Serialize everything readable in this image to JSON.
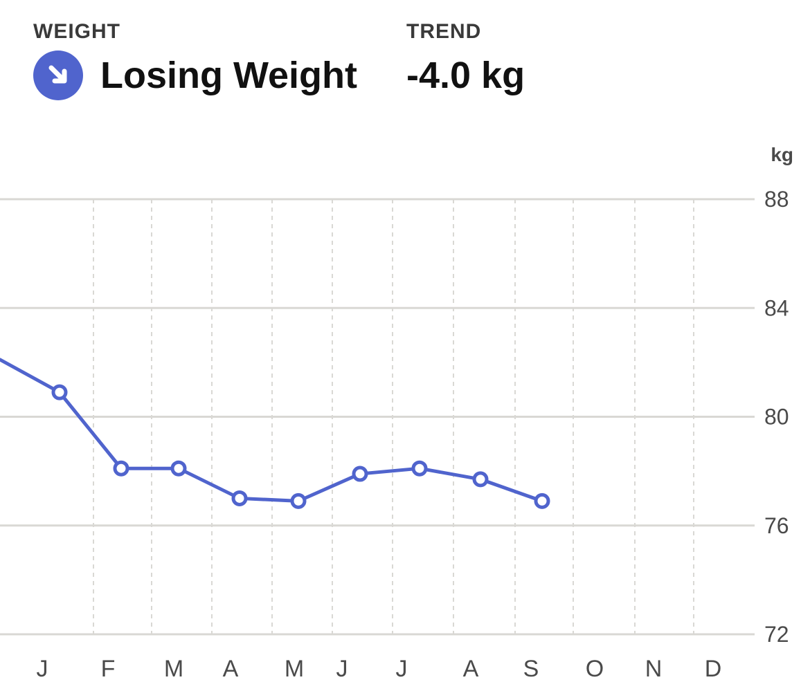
{
  "header": {
    "weight_label": "WEIGHT",
    "status_text": "Losing Weight",
    "status_icon": "arrow-down-right-icon",
    "trend_label": "TREND",
    "trend_value": "-4.0 kg"
  },
  "colors": {
    "accent": "#5064CD",
    "gridline": "#D9D8D4",
    "label": "#4A4A4A"
  },
  "chart_data": {
    "type": "line",
    "unit_label": "kg",
    "categories": [
      "J",
      "F",
      "M",
      "A",
      "M",
      "J",
      "J",
      "A",
      "S",
      "O",
      "N",
      "D"
    ],
    "y_ticks": [
      88,
      84,
      80,
      76,
      72
    ],
    "ylim": [
      72,
      88
    ],
    "grid": true,
    "series": [
      {
        "values": [
          80.9,
          78.1,
          78.1,
          77.0,
          76.9,
          77.9,
          78.1,
          77.7,
          76.9,
          null,
          null,
          null
        ],
        "incoming_value": 82.1
      }
    ]
  }
}
